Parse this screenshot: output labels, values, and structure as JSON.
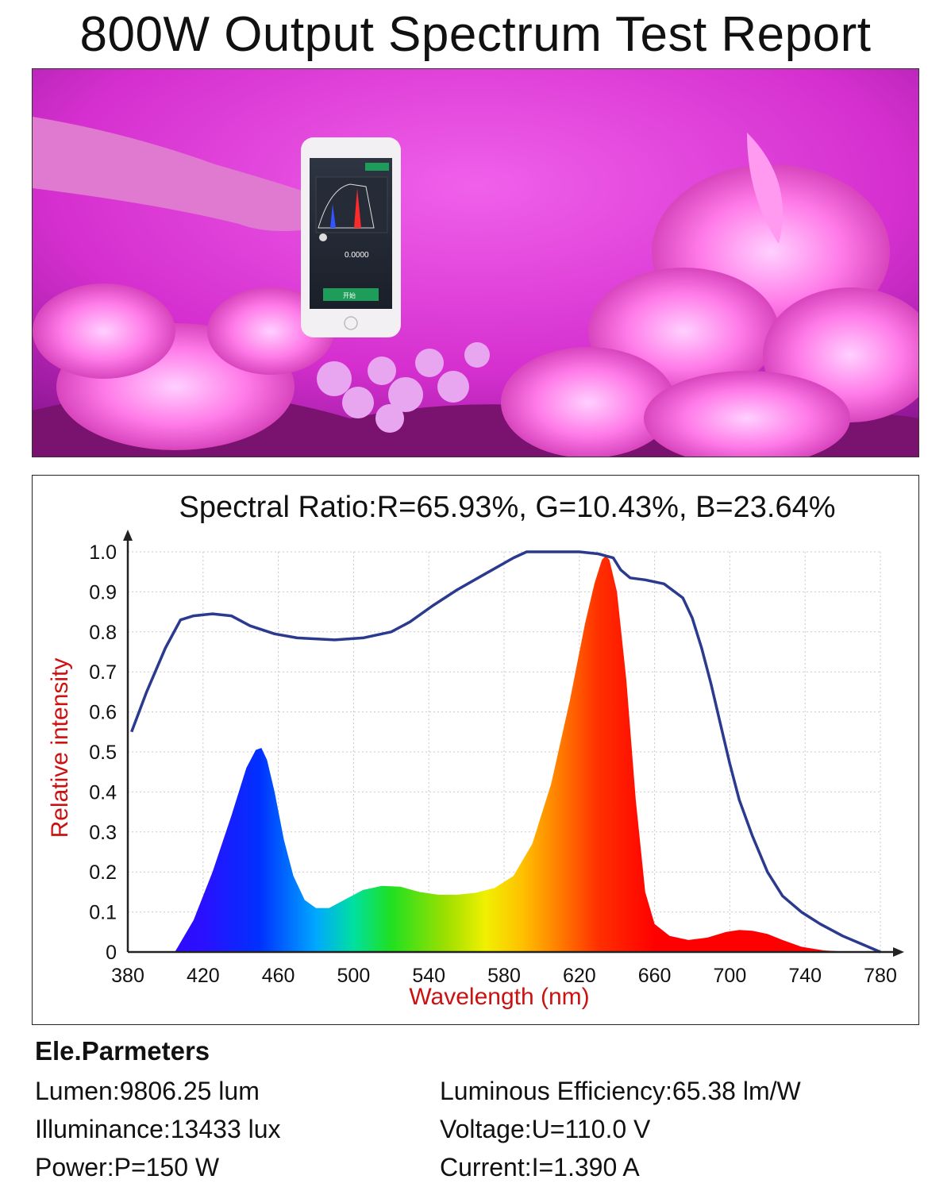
{
  "page_title": "800W Output Spectrum Test Report",
  "photo": {
    "phone_value": "0.0000",
    "phone_button": "开始"
  },
  "chart_data": {
    "type": "area",
    "title": "Spectral Ratio:R=65.93%, G=10.43%, B=23.64%",
    "xlabel": "Wavelength (nm)",
    "ylabel": "Relative intensity",
    "xlim": [
      380,
      780
    ],
    "ylim": [
      0,
      1.0
    ],
    "x_ticks": [
      "380",
      "420",
      "460",
      "500",
      "540",
      "580",
      "620",
      "660",
      "700",
      "740",
      "780"
    ],
    "y_ticks": [
      "0",
      "0.1",
      "0.2",
      "0.3",
      "0.4",
      "0.5",
      "0.6",
      "0.7",
      "0.8",
      "0.9",
      "1.0"
    ],
    "grid": true,
    "colors": {
      "envelope": "#2b3a8f",
      "axis_label": "#cc1111"
    },
    "series": [
      {
        "style": "filled-rainbow",
        "points": [
          [
            405,
            0
          ],
          [
            415,
            0.08
          ],
          [
            425,
            0.2
          ],
          [
            435,
            0.34
          ],
          [
            443,
            0.46
          ],
          [
            448,
            0.505
          ],
          [
            451,
            0.51
          ],
          [
            454,
            0.48
          ],
          [
            458,
            0.4
          ],
          [
            463,
            0.28
          ],
          [
            468,
            0.19
          ],
          [
            474,
            0.13
          ],
          [
            480,
            0.11
          ],
          [
            487,
            0.11
          ],
          [
            495,
            0.13
          ],
          [
            505,
            0.155
          ],
          [
            515,
            0.165
          ],
          [
            525,
            0.163
          ],
          [
            535,
            0.15
          ],
          [
            545,
            0.143
          ],
          [
            555,
            0.143
          ],
          [
            565,
            0.148
          ],
          [
            575,
            0.16
          ],
          [
            585,
            0.19
          ],
          [
            595,
            0.27
          ],
          [
            605,
            0.42
          ],
          [
            615,
            0.63
          ],
          [
            623,
            0.82
          ],
          [
            628,
            0.92
          ],
          [
            632,
            0.98
          ],
          [
            634,
            0.99
          ],
          [
            636,
            0.98
          ],
          [
            640,
            0.9
          ],
          [
            645,
            0.68
          ],
          [
            650,
            0.38
          ],
          [
            655,
            0.15
          ],
          [
            660,
            0.07
          ],
          [
            668,
            0.04
          ],
          [
            678,
            0.03
          ],
          [
            688,
            0.036
          ],
          [
            698,
            0.05
          ],
          [
            705,
            0.055
          ],
          [
            712,
            0.053
          ],
          [
            720,
            0.045
          ],
          [
            728,
            0.03
          ],
          [
            738,
            0.013
          ],
          [
            750,
            0.004
          ],
          [
            765,
            0
          ]
        ]
      },
      {
        "style": "line",
        "points": [
          [
            382,
            0.55
          ],
          [
            390,
            0.65
          ],
          [
            400,
            0.76
          ],
          [
            408,
            0.83
          ],
          [
            415,
            0.84
          ],
          [
            425,
            0.845
          ],
          [
            435,
            0.84
          ],
          [
            445,
            0.815
          ],
          [
            458,
            0.795
          ],
          [
            470,
            0.785
          ],
          [
            490,
            0.78
          ],
          [
            505,
            0.785
          ],
          [
            520,
            0.8
          ],
          [
            530,
            0.825
          ],
          [
            542,
            0.865
          ],
          [
            555,
            0.905
          ],
          [
            570,
            0.945
          ],
          [
            585,
            0.985
          ],
          [
            592,
            1.0
          ],
          [
            605,
            1.0
          ],
          [
            620,
            1.0
          ],
          [
            630,
            0.995
          ],
          [
            638,
            0.985
          ],
          [
            642,
            0.955
          ],
          [
            647,
            0.935
          ],
          [
            655,
            0.93
          ],
          [
            665,
            0.92
          ],
          [
            675,
            0.885
          ],
          [
            680,
            0.835
          ],
          [
            685,
            0.76
          ],
          [
            690,
            0.67
          ],
          [
            695,
            0.57
          ],
          [
            700,
            0.47
          ],
          [
            705,
            0.38
          ],
          [
            712,
            0.29
          ],
          [
            720,
            0.2
          ],
          [
            728,
            0.14
          ],
          [
            738,
            0.1
          ],
          [
            748,
            0.07
          ],
          [
            760,
            0.04
          ],
          [
            770,
            0.02
          ],
          [
            780,
            0
          ]
        ]
      }
    ]
  },
  "parameters": {
    "title": "Ele.Parmeters",
    "rows": [
      {
        "left": "Lumen:9806.25 lum",
        "right": "Luminous Efficiency:65.38 lm/W"
      },
      {
        "left": "Illuminance:13433 lux",
        "right": "Voltage:U=110.0 V"
      },
      {
        "left": "Power:P=150 W",
        "right": "Current:I=1.390 A"
      }
    ]
  }
}
